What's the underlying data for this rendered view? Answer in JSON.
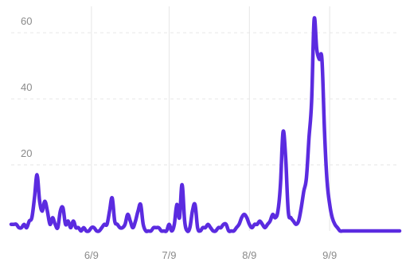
{
  "chart_data": {
    "type": "line",
    "title": "",
    "xlabel": "",
    "ylabel": "",
    "ylim": [
      0,
      68
    ],
    "grid": true,
    "legend": "none",
    "colors": {
      "line": "#5b2be0",
      "grid": "#e6e6e6",
      "tick": "#8a8a8a"
    },
    "y_ticks": [
      "20",
      "40",
      "60"
    ],
    "y_tick_values": [
      20,
      40,
      60
    ],
    "x_ticks": [
      "6/9",
      "7/9",
      "8/9",
      "9/9"
    ],
    "x_tick_days": [
      31,
      61,
      92,
      123
    ],
    "x_range_days": [
      0,
      150
    ],
    "series": [
      {
        "x_days": [
          0,
          1,
          2,
          3,
          4,
          5,
          6,
          7,
          8,
          9,
          10,
          11,
          12,
          13,
          14,
          15,
          16,
          17,
          18,
          19,
          20,
          21,
          22,
          23,
          24,
          25,
          26,
          27,
          28,
          29,
          30,
          31,
          32,
          33,
          34,
          35,
          36,
          37,
          38,
          39,
          40,
          41,
          42,
          43,
          44,
          45,
          46,
          47,
          48,
          49,
          50,
          51,
          52,
          53,
          54,
          55,
          56,
          57,
          58,
          59,
          60,
          61,
          62,
          63,
          64,
          65,
          66,
          67,
          68,
          69,
          70,
          71,
          72,
          73,
          74,
          75,
          76,
          77,
          78,
          79,
          80,
          81,
          82,
          83,
          84,
          85,
          86,
          87,
          88,
          89,
          90,
          91,
          92,
          93,
          94,
          95,
          96,
          97,
          98,
          99,
          100,
          101,
          102,
          103,
          104,
          105,
          106,
          107,
          108,
          109,
          110,
          111,
          112,
          113,
          114,
          115,
          116,
          117,
          118,
          119,
          120,
          121,
          122,
          123,
          124,
          125,
          126,
          127,
          128,
          129,
          130,
          131,
          132,
          133,
          134,
          135,
          136,
          137,
          138,
          139,
          140,
          141,
          142,
          143,
          144,
          145,
          146,
          147,
          148,
          149,
          150
        ],
        "values": [
          2,
          2,
          2,
          1,
          1,
          2,
          1,
          3,
          4,
          10,
          17,
          9,
          6,
          9,
          6,
          2,
          4,
          2,
          1,
          6,
          7,
          2,
          3,
          1,
          3,
          1,
          1,
          0,
          1,
          0,
          0,
          1,
          1,
          0,
          0,
          1,
          2,
          2,
          6,
          10,
          3,
          2,
          1,
          1,
          2,
          5,
          3,
          1,
          3,
          6,
          8,
          2,
          0,
          0,
          0,
          1,
          1,
          1,
          0,
          0,
          0,
          2,
          0,
          2,
          8,
          4,
          14,
          3,
          0,
          1,
          6,
          8,
          1,
          0,
          1,
          1,
          2,
          1,
          0,
          0,
          1,
          1,
          2,
          2,
          0,
          0,
          0,
          1,
          2,
          4,
          5,
          4,
          2,
          1,
          2,
          2,
          3,
          2,
          1,
          2,
          3,
          5,
          4,
          6,
          14,
          30,
          22,
          6,
          4,
          3,
          2,
          3,
          7,
          12,
          16,
          28,
          39,
          64,
          55,
          52,
          52,
          30,
          15,
          8,
          4,
          2,
          1,
          0,
          0,
          0,
          0,
          0,
          0,
          0,
          0,
          0,
          0,
          0,
          0,
          0,
          0,
          0,
          0,
          0,
          0,
          0,
          0,
          0,
          0,
          0,
          0
        ]
      }
    ]
  }
}
